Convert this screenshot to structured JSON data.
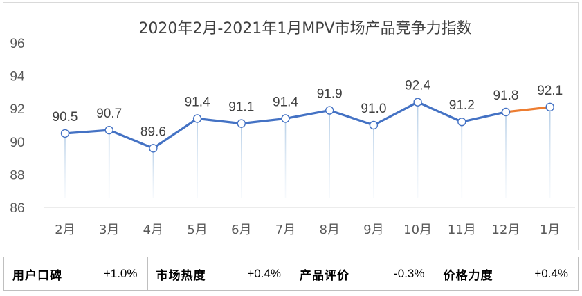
{
  "chart_data": {
    "type": "line",
    "title": "2020年2月-2021年1月MPV市场产品竞争力指数",
    "categories": [
      "2月",
      "3月",
      "4月",
      "5月",
      "6月",
      "7月",
      "8月",
      "9月",
      "10月",
      "11月",
      "12月",
      "1月"
    ],
    "series": [
      {
        "name": "MPV市场产品竞争力指数",
        "values": [
          90.5,
          90.7,
          89.6,
          91.4,
          91.1,
          91.4,
          91.9,
          91.0,
          92.4,
          91.2,
          91.8,
          92.1
        ]
      }
    ],
    "data_labels": [
      "90.5",
      "90.7",
      "89.6",
      "91.4",
      "91.1",
      "91.4",
      "91.9",
      "91.0",
      "92.4",
      "91.2",
      "91.8",
      "92.1"
    ],
    "ylim": [
      86,
      96
    ],
    "yticks": [
      86,
      88,
      90,
      92,
      94,
      96
    ],
    "xlabel": "",
    "ylabel": "",
    "grid": false,
    "colors": {
      "line": "#4472c4",
      "last_segment": "#ed7d31",
      "marker_fill": "#ffffff",
      "drop_line": "#c5d9ed",
      "axis_text": "#595959",
      "title": "#404040"
    }
  },
  "metrics": [
    {
      "label": "用户口碑",
      "value": "+1.0%"
    },
    {
      "label": "市场热度",
      "value": "+0.4%"
    },
    {
      "label": "产品评价",
      "value": "-0.3%"
    },
    {
      "label": "价格力度",
      "value": "+0.4%"
    }
  ]
}
